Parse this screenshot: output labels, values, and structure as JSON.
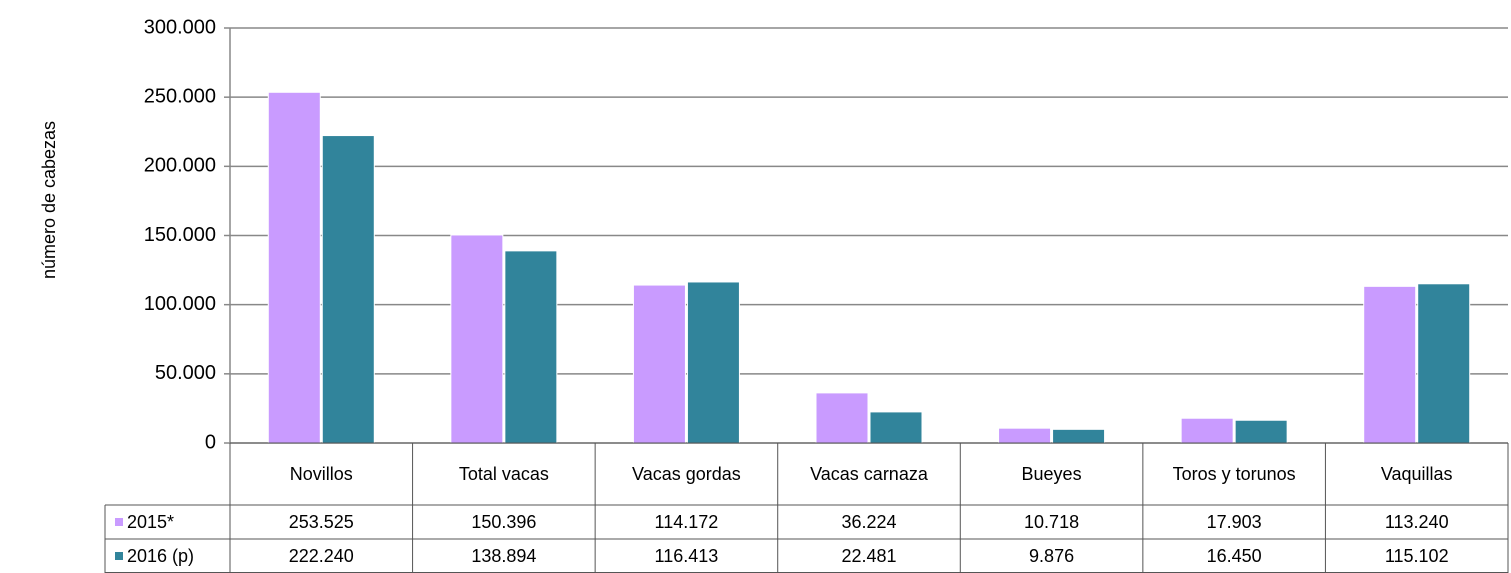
{
  "chart_data": {
    "type": "bar",
    "y_label": "número de cabezas",
    "categories": [
      "Novillos",
      "Total vacas",
      "Vacas gordas",
      "Vacas carnaza",
      "Bueyes",
      "Toros y torunos",
      "Vaquillas"
    ],
    "series": [
      {
        "name": "2015*",
        "color": "#c99bff",
        "values": [
          253525,
          150396,
          114172,
          36224,
          10718,
          17903,
          113240
        ],
        "value_labels": [
          "253.525",
          "150.396",
          "114.172",
          "36.224",
          "10.718",
          "17.903",
          "113.240"
        ]
      },
      {
        "name": "2016 (p)",
        "color": "#31849b",
        "values": [
          222240,
          138894,
          116413,
          22481,
          9876,
          16450,
          115102
        ],
        "value_labels": [
          "222.240",
          "138.894",
          "116.413",
          "22.481",
          "9.876",
          "16.450",
          "115.102"
        ]
      }
    ],
    "ylim": [
      0,
      300000
    ],
    "yticks": [
      0,
      {
        "value": 50000,
        "label": "50.000"
      },
      {
        "value": 100000,
        "label": "100.000"
      },
      {
        "value": 150000,
        "label": "150.000"
      },
      {
        "value": 200000,
        "label": "200.000"
      },
      {
        "value": 250000,
        "label": "250.000"
      },
      {
        "value": 300000,
        "label": "300.000"
      }
    ],
    "grid": true
  }
}
